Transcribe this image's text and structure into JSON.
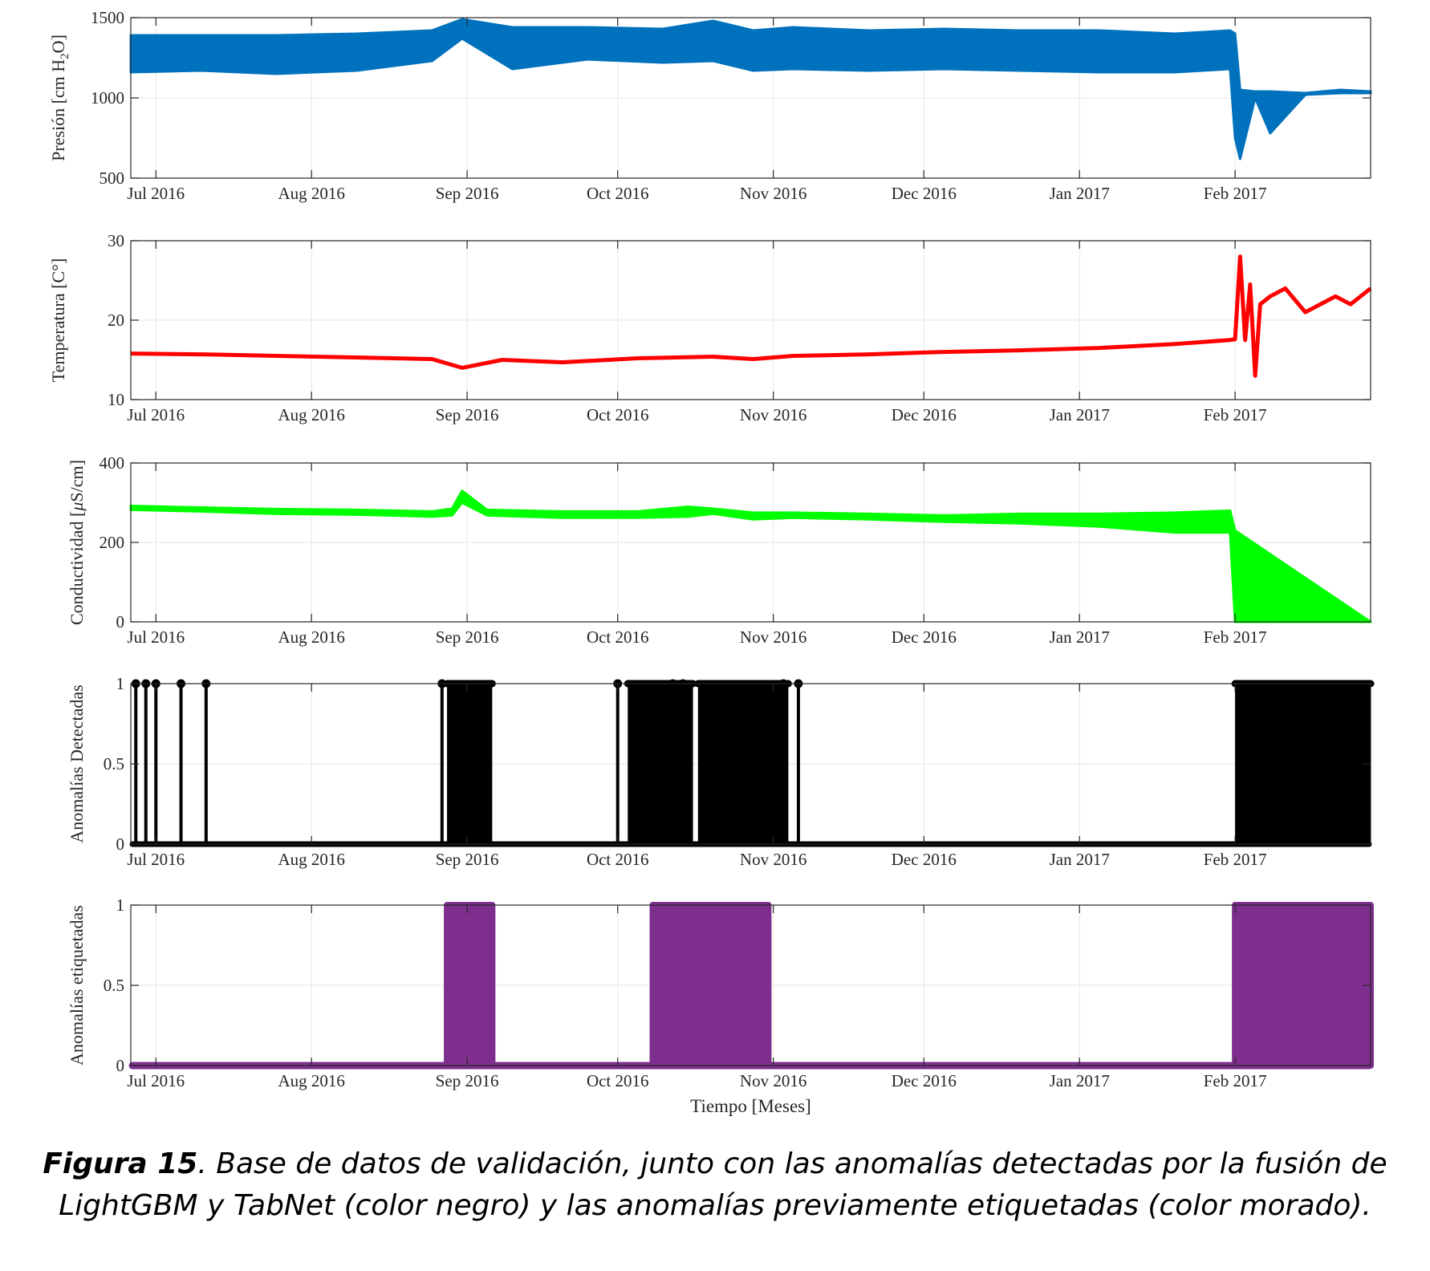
{
  "chart_data": [
    {
      "type": "line",
      "ylabel_parts": [
        "Presión [cm H",
        "2",
        "O]"
      ],
      "ylim": [
        500,
        1500
      ],
      "yticks": [
        "500",
        "1000",
        "1500"
      ],
      "xticks": [
        "Jul 2016",
        "Aug 2016",
        "Sep 2016",
        "Oct 2016",
        "Nov 2016",
        "Dec 2016",
        "Jan 2017",
        "Feb 2017"
      ],
      "xlim": [
        "2016-06-26",
        "2017-02-28"
      ],
      "grid": true,
      "color": "#0072BD",
      "series": [
        {
          "x": [
            "2016-06-26",
            "2016-07-10",
            "2016-07-25",
            "2016-08-10",
            "2016-08-25",
            "2016-08-31",
            "2016-09-10",
            "2016-09-25",
            "2016-10-10",
            "2016-10-20",
            "2016-10-28",
            "2016-11-05",
            "2016-11-20",
            "2016-12-05",
            "2016-12-20",
            "2017-01-05",
            "2017-01-20",
            "2017-01-31",
            "2017-02-01",
            "2017-02-02",
            "2017-02-05",
            "2017-02-08",
            "2017-02-15",
            "2017-02-22",
            "2017-02-28"
          ],
          "y_low": [
            1160,
            1170,
            1150,
            1170,
            1230,
            1370,
            1180,
            1240,
            1220,
            1230,
            1170,
            1180,
            1170,
            1180,
            1170,
            1160,
            1160,
            1180,
            750,
            620,
            1000,
            780,
            1020,
            1030,
            1030
          ],
          "y_high": [
            1390,
            1390,
            1390,
            1400,
            1420,
            1490,
            1440,
            1440,
            1430,
            1480,
            1420,
            1440,
            1420,
            1430,
            1420,
            1420,
            1400,
            1420,
            1400,
            1050,
            1040,
            1040,
            1030,
            1050,
            1040
          ]
        }
      ]
    },
    {
      "type": "line",
      "ylabel": "Temperatura [C°]",
      "ylim": [
        10,
        30
      ],
      "yticks": [
        "10",
        "20",
        "30"
      ],
      "xticks": [
        "Jul 2016",
        "Aug 2016",
        "Sep 2016",
        "Oct 2016",
        "Nov 2016",
        "Dec 2016",
        "Jan 2017",
        "Feb 2017"
      ],
      "xlim": [
        "2016-06-26",
        "2017-02-28"
      ],
      "grid": true,
      "color": "#FF0000",
      "series": [
        {
          "x": [
            "2016-06-26",
            "2016-07-10",
            "2016-07-25",
            "2016-08-10",
            "2016-08-25",
            "2016-08-31",
            "2016-09-08",
            "2016-09-20",
            "2016-10-05",
            "2016-10-20",
            "2016-10-28",
            "2016-11-05",
            "2016-11-20",
            "2016-12-05",
            "2016-12-20",
            "2017-01-05",
            "2017-01-20",
            "2017-01-31",
            "2017-02-01",
            "2017-02-02",
            "2017-02-03",
            "2017-02-04",
            "2017-02-05",
            "2017-02-06",
            "2017-02-08",
            "2017-02-11",
            "2017-02-15",
            "2017-02-18",
            "2017-02-21",
            "2017-02-24",
            "2017-02-28"
          ],
          "y": [
            15.8,
            15.7,
            15.5,
            15.3,
            15.1,
            14.0,
            15.0,
            14.7,
            15.2,
            15.4,
            15.1,
            15.5,
            15.7,
            16.0,
            16.2,
            16.5,
            17.0,
            17.5,
            17.6,
            28,
            17.5,
            24.5,
            13,
            22,
            23,
            24,
            21,
            22,
            23,
            22,
            24
          ]
        }
      ]
    },
    {
      "type": "line",
      "ylabel_parts": [
        "Conductividad [",
        "μ",
        "S/cm]"
      ],
      "ylim": [
        0,
        400
      ],
      "yticks": [
        "0",
        "200",
        "400"
      ],
      "xticks": [
        "Jul 2016",
        "Aug 2016",
        "Sep 2016",
        "Oct 2016",
        "Nov 2016",
        "Dec 2016",
        "Jan 2017",
        "Feb 2017"
      ],
      "xlim": [
        "2016-06-26",
        "2017-02-28"
      ],
      "grid": true,
      "color": "#00FF00",
      "series": [
        {
          "x": [
            "2016-06-26",
            "2016-07-10",
            "2016-07-25",
            "2016-08-10",
            "2016-08-25",
            "2016-08-29",
            "2016-08-31",
            "2016-09-05",
            "2016-09-20",
            "2016-10-05",
            "2016-10-15",
            "2016-10-20",
            "2016-10-28",
            "2016-11-05",
            "2016-11-20",
            "2016-12-05",
            "2016-12-20",
            "2017-01-05",
            "2017-01-20",
            "2017-01-31",
            "2017-02-01",
            "2017-02-28"
          ],
          "y_low": [
            282,
            278,
            272,
            270,
            265,
            268,
            300,
            268,
            262,
            262,
            265,
            272,
            258,
            262,
            258,
            252,
            248,
            240,
            225,
            225,
            0,
            0
          ],
          "y_high": [
            292,
            288,
            284,
            282,
            278,
            285,
            330,
            282,
            278,
            278,
            290,
            285,
            275,
            275,
            272,
            268,
            272,
            272,
            275,
            280,
            230,
            0
          ]
        }
      ]
    },
    {
      "type": "stem",
      "ylabel": "Anomalías Detectadas",
      "ylim": [
        0,
        1
      ],
      "yticks": [
        "0",
        "0.5",
        "1"
      ],
      "xticks": [
        "Jul 2016",
        "Aug 2016",
        "Sep 2016",
        "Oct 2016",
        "Nov 2016",
        "Dec 2016",
        "Jan 2017",
        "Feb 2017"
      ],
      "xlim": [
        "2016-06-26",
        "2017-02-28"
      ],
      "grid": true,
      "color": "#000000",
      "series": [
        {
          "single_dates": [
            "2016-06-27",
            "2016-06-29",
            "2016-07-01",
            "2016-07-06",
            "2016-07-11",
            "2016-08-27",
            "2016-10-01",
            "2016-10-12",
            "2016-10-14",
            "2016-11-03",
            "2016-11-06"
          ],
          "dense_ranges": [
            [
              "2016-08-28",
              "2016-09-06"
            ],
            [
              "2016-10-03",
              "2016-10-16"
            ],
            [
              "2016-10-17",
              "2016-11-04"
            ],
            [
              "2017-02-01",
              "2017-02-28"
            ]
          ]
        }
      ]
    },
    {
      "type": "area",
      "ylabel": "Anomalías etiquetadas",
      "xlabel": "Tiempo [Meses]",
      "ylim": [
        0,
        1
      ],
      "yticks": [
        "0",
        "0.5",
        "1"
      ],
      "xticks": [
        "Jul 2016",
        "Aug 2016",
        "Sep 2016",
        "Oct 2016",
        "Nov 2016",
        "Dec 2016",
        "Jan 2017",
        "Feb 2017"
      ],
      "xlim": [
        "2016-06-26",
        "2017-02-28"
      ],
      "grid": true,
      "color": "#7E2F8E",
      "series": [
        {
          "ranges": [
            [
              "2016-08-28",
              "2016-09-06"
            ],
            [
              "2016-10-08",
              "2016-10-31"
            ],
            [
              "2017-02-01",
              "2017-02-28"
            ]
          ]
        }
      ]
    }
  ],
  "caption": {
    "label": "Figura 15",
    "text": ". Base de datos de validación, junto con las anomalías detectadas por la fusión de LightGBM y TabNet (color negro) y las anomalías previamente etiquetadas (color morado)."
  }
}
